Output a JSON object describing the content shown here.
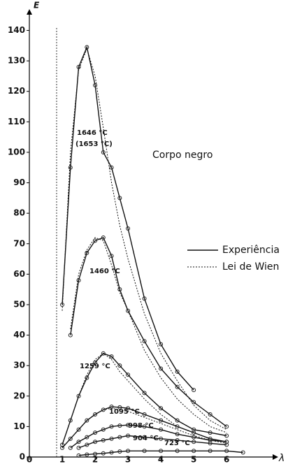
{
  "chart_data": {
    "type": "line",
    "title": "Corpo negro",
    "y_label": "E",
    "x_label": "λ",
    "x": [
      1,
      1.25,
      1.5,
      1.75,
      2,
      2.25,
      2.5,
      2.75,
      3,
      3.5,
      4,
      4.5,
      5,
      5.5,
      6,
      6.5
    ],
    "xlim": [
      0,
      7.4
    ],
    "xticks": [
      0,
      1,
      2,
      3,
      4,
      5,
      6
    ],
    "ylim": [
      0,
      147
    ],
    "yticks": [
      0,
      10,
      20,
      30,
      40,
      50,
      60,
      70,
      80,
      90,
      100,
      110,
      120,
      130,
      140
    ],
    "legend": [
      {
        "name": "Experiência",
        "dashed": false
      },
      {
        "name": "Lei de Wien",
        "dashed": true
      }
    ],
    "annotations": [
      "1646 °C",
      "(1653 °C)",
      "1460 °C",
      "1259 °C",
      "1095 °C",
      "998 °C",
      "904 °C",
      "723 °C"
    ],
    "series": [
      {
        "dashed": false,
        "values": [
          50,
          95,
          128,
          134.5,
          122,
          100,
          95,
          85,
          75,
          52,
          37,
          28,
          22,
          null,
          null,
          null
        ]
      },
      {
        "dashed": true,
        "values": [
          48,
          100,
          127,
          134,
          125,
          108,
          90,
          76,
          65,
          47,
          34,
          25,
          17,
          12,
          9,
          null
        ]
      },
      {
        "dashed": false,
        "values": [
          null,
          40,
          58,
          67,
          71,
          72,
          66,
          55,
          48,
          38,
          29,
          23,
          18,
          14,
          10,
          null
        ]
      },
      {
        "dashed": true,
        "values": [
          null,
          42,
          60,
          68,
          72,
          71,
          63,
          54,
          48,
          35,
          26,
          19,
          14,
          10,
          8,
          null
        ]
      },
      {
        "dashed": false,
        "values": [
          4,
          12,
          20,
          26,
          31,
          34,
          33,
          30,
          27,
          21,
          16,
          12,
          9,
          8,
          7,
          null
        ]
      },
      {
        "dashed": true,
        "values": [
          4,
          12,
          20,
          27,
          32,
          34,
          32,
          28,
          25,
          19,
          14,
          10,
          8,
          6,
          5,
          null
        ]
      },
      {
        "dashed": false,
        "values": [
          3,
          6,
          9,
          12,
          14,
          15.5,
          16.5,
          16.3,
          16,
          14,
          12,
          10,
          8,
          6,
          5,
          null
        ]
      },
      {
        "dashed": true,
        "values": [
          3,
          6,
          9,
          12,
          14,
          15.5,
          16,
          15.5,
          15,
          13,
          11,
          9,
          7,
          5.5,
          4.5,
          null
        ]
      },
      {
        "dashed": false,
        "values": [
          null,
          3,
          5,
          6.5,
          8,
          9,
          10,
          10.3,
          10.5,
          10,
          9,
          7.5,
          6.5,
          5.5,
          5,
          null
        ]
      },
      {
        "dashed": false,
        "values": [
          null,
          null,
          3,
          4,
          5,
          5.5,
          6,
          6.5,
          7,
          6.5,
          6,
          5.5,
          5,
          4.5,
          4,
          null
        ]
      },
      {
        "dashed": false,
        "values": [
          null,
          null,
          0.5,
          0.8,
          1,
          1.2,
          1.5,
          1.8,
          2,
          2,
          2,
          2,
          2,
          2,
          2,
          1.5
        ]
      }
    ]
  }
}
